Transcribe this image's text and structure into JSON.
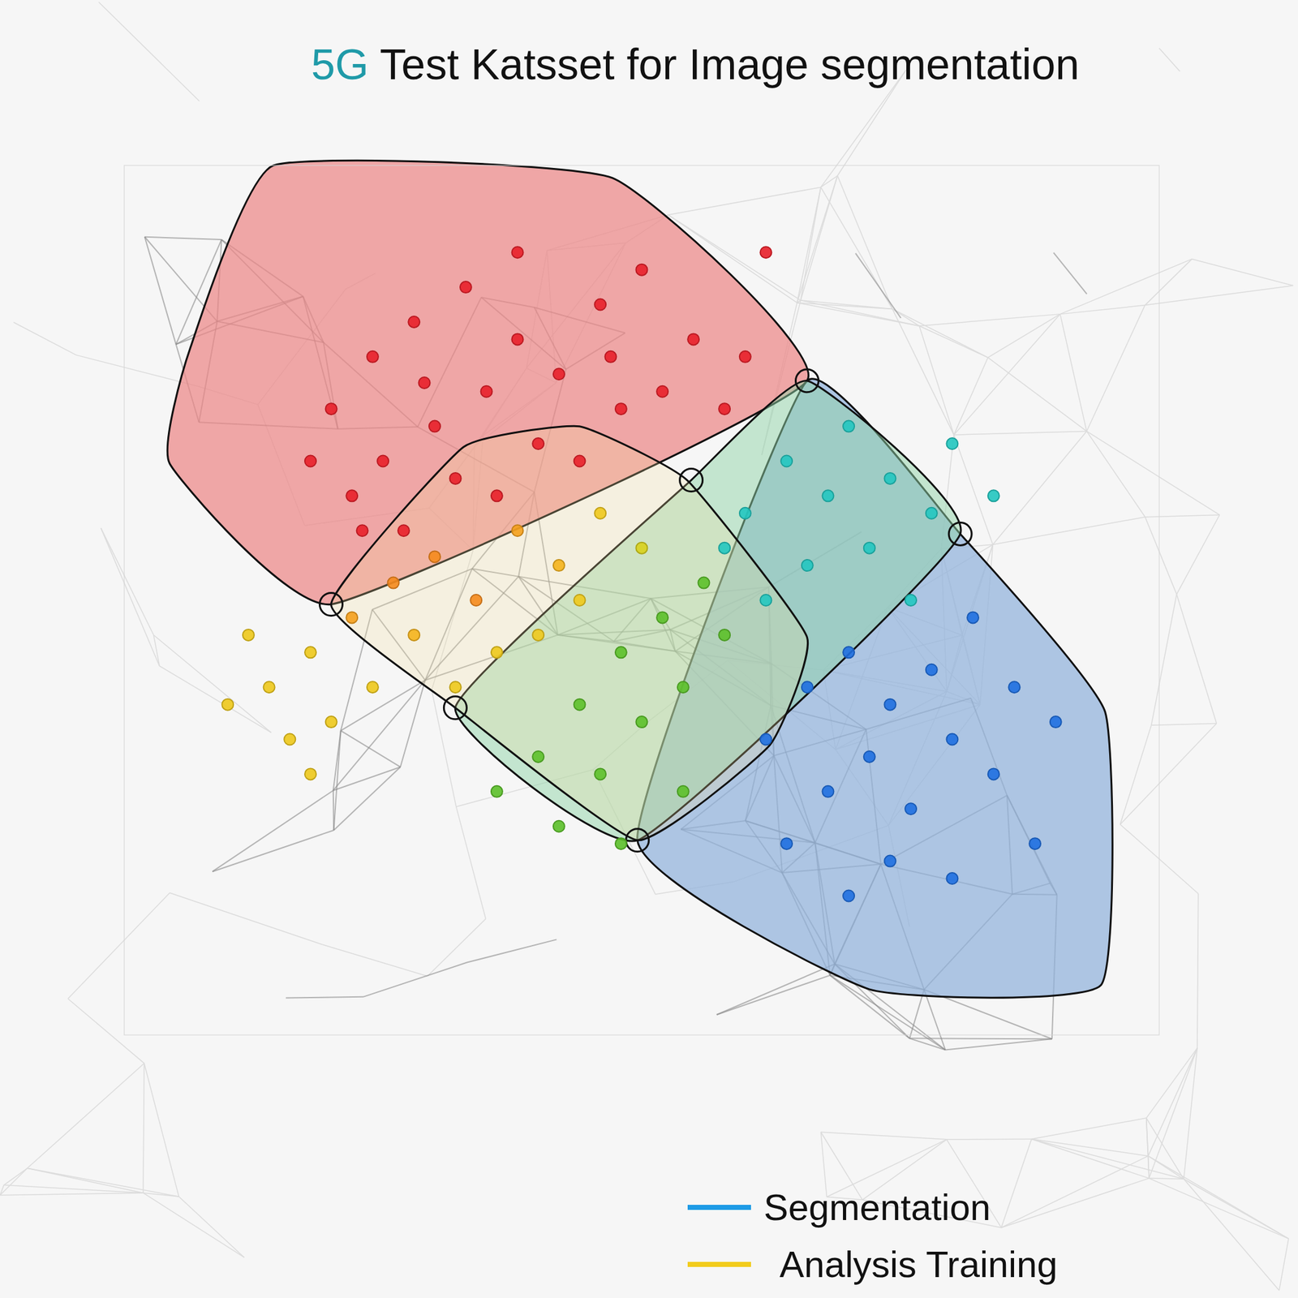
{
  "chart_data": {
    "type": "scatter",
    "title": "5G Test Katsset for Image segmentation",
    "xlim": [
      0,
      100
    ],
    "ylim": [
      0,
      100
    ],
    "tick_labels": false,
    "legend": "bottom-right",
    "series": [
      {
        "name": "Analysis Training",
        "color": "#f2cc1c",
        "marker": "circle",
        "x": [
          20,
          24,
          28,
          33,
          38,
          30,
          25,
          22,
          35,
          42,
          46,
          50,
          55,
          48,
          40,
          32,
          27,
          36,
          44,
          52,
          58,
          62,
          60,
          18,
          29,
          38,
          47,
          23,
          30,
          34,
          38,
          42,
          46,
          40,
          36,
          26,
          22,
          18,
          14,
          16,
          20,
          12,
          24,
          28,
          44,
          50,
          10,
          18,
          32
        ],
        "values": [
          72,
          78,
          82,
          86,
          80,
          70,
          66,
          62,
          74,
          76,
          84,
          88,
          80,
          72,
          68,
          64,
          58,
          62,
          66,
          74,
          72,
          90,
          78,
          66,
          75,
          90,
          78,
          58,
          55,
          50,
          58,
          54,
          60,
          46,
          44,
          52,
          48,
          44,
          40,
          34,
          36,
          46,
          40,
          46,
          50,
          56,
          38,
          30,
          40
        ],
        "colors": [
          "#e8202a",
          "#e8202a",
          "#e8202a",
          "#e8202a",
          "#e8202a",
          "#e8202a",
          "#e8202a",
          "#e8202a",
          "#e8202a",
          "#e8202a",
          "#e8202a",
          "#e8202a",
          "#e8202a",
          "#e8202a",
          "#e8202a",
          "#e8202a",
          "#e8202a",
          "#e8202a",
          "#e8202a",
          "#e8202a",
          "#e8202a",
          "#e8202a",
          "#e8202a",
          "#e8202a",
          "#e8202a",
          "#e8202a",
          "#e8202a",
          "#e8202a",
          "#f58a1c",
          "#f58a1c",
          "#f5a01c",
          "#f5b41c",
          "#f0c81c",
          "#eec91c",
          "#eec91c",
          "#f58a1c",
          "#f5a01c",
          "#eec91c",
          "#eec91c",
          "#eec91c",
          "#eec91c",
          "#eec91c",
          "#eec91c",
          "#f5b41c",
          "#eec91c",
          "#d8d01c",
          "#eec91c",
          "#eec91c",
          "#eec91c"
        ]
      },
      {
        "name": "Segmentation",
        "color": "#1e9be6",
        "marker": "circle",
        "x": [
          44,
          48,
          52,
          56,
          50,
          46,
          40,
          54,
          58,
          36,
          42,
          48,
          54,
          60,
          64,
          68,
          72,
          66,
          62,
          74,
          78,
          70,
          80,
          76,
          84,
          58,
          66,
          70,
          74,
          78,
          72,
          68,
          76,
          80,
          84,
          86,
          82,
          88,
          62,
          74,
          80,
          90,
          70,
          64
        ],
        "values": [
          38,
          44,
          48,
          52,
          36,
          30,
          32,
          40,
          46,
          28,
          24,
          22,
          28,
          60,
          66,
          62,
          56,
          54,
          50,
          64,
          60,
          70,
          68,
          50,
          62,
          56,
          40,
          44,
          38,
          42,
          32,
          28,
          26,
          34,
          30,
          40,
          48,
          22,
          34,
          20,
          18,
          36,
          16,
          22
        ],
        "colors": [
          "#5cc02a",
          "#5cc02a",
          "#5cc02a",
          "#5cc02a",
          "#5cc02a",
          "#5cc02a",
          "#5cc02a",
          "#5cc02a",
          "#5cc02a",
          "#5cc02a",
          "#5cc02a",
          "#5cc02a",
          "#5cc02a",
          "#22c7c0",
          "#22c7c0",
          "#22c7c0",
          "#22c7c0",
          "#22c7c0",
          "#22c7c0",
          "#22c7c0",
          "#22c7c0",
          "#22c7c0",
          "#22c7c0",
          "#22c7c0",
          "#22c7c0",
          "#22c7c0",
          "#1f6fe0",
          "#1f6fe0",
          "#1f6fe0",
          "#1f6fe0",
          "#1f6fe0",
          "#1f6fe0",
          "#1f6fe0",
          "#1f6fe0",
          "#1f6fe0",
          "#1f6fe0",
          "#1f6fe0",
          "#1f6fe0",
          "#1f6fe0",
          "#1f6fe0",
          "#1f6fe0",
          "#1f6fe0",
          "#1f6fe0",
          "#1f6fe0"
        ]
      }
    ]
  }
}
